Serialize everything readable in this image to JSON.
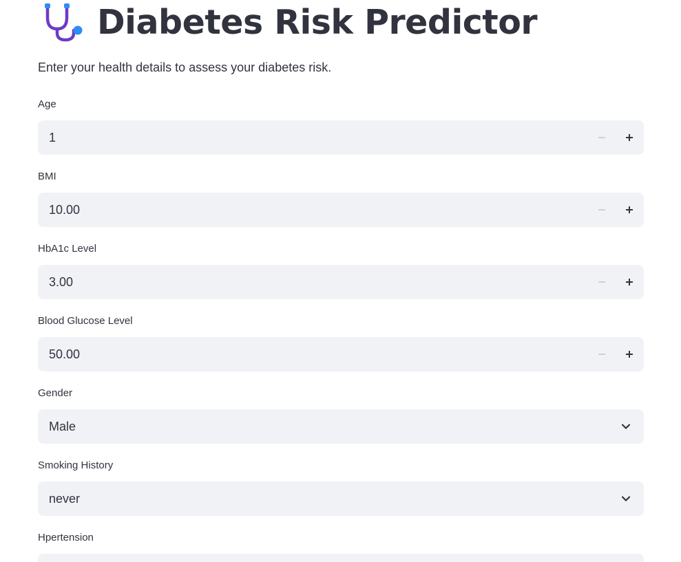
{
  "header": {
    "icon": "stethoscope-icon",
    "title": "Diabetes Risk Predictor",
    "subtitle": "Enter your health details to assess your diabetes risk."
  },
  "fields": {
    "age": {
      "label": "Age",
      "value": "1"
    },
    "bmi": {
      "label": "BMI",
      "value": "10.00"
    },
    "hba1c": {
      "label": "HbA1c Level",
      "value": "3.00"
    },
    "glucose": {
      "label": "Blood Glucose Level",
      "value": "50.00"
    },
    "gender": {
      "label": "Gender",
      "value": "Male"
    },
    "smoking": {
      "label": "Smoking History",
      "value": "never"
    },
    "hypertension": {
      "label": "Hpertension",
      "value": ""
    }
  },
  "colors": {
    "text": "#31333f",
    "input_bg": "#f0f2f6",
    "icon_purple": "#6c3cc7",
    "icon_blue": "#2f8cf5",
    "stepper_disabled": "#c7c9d1"
  }
}
